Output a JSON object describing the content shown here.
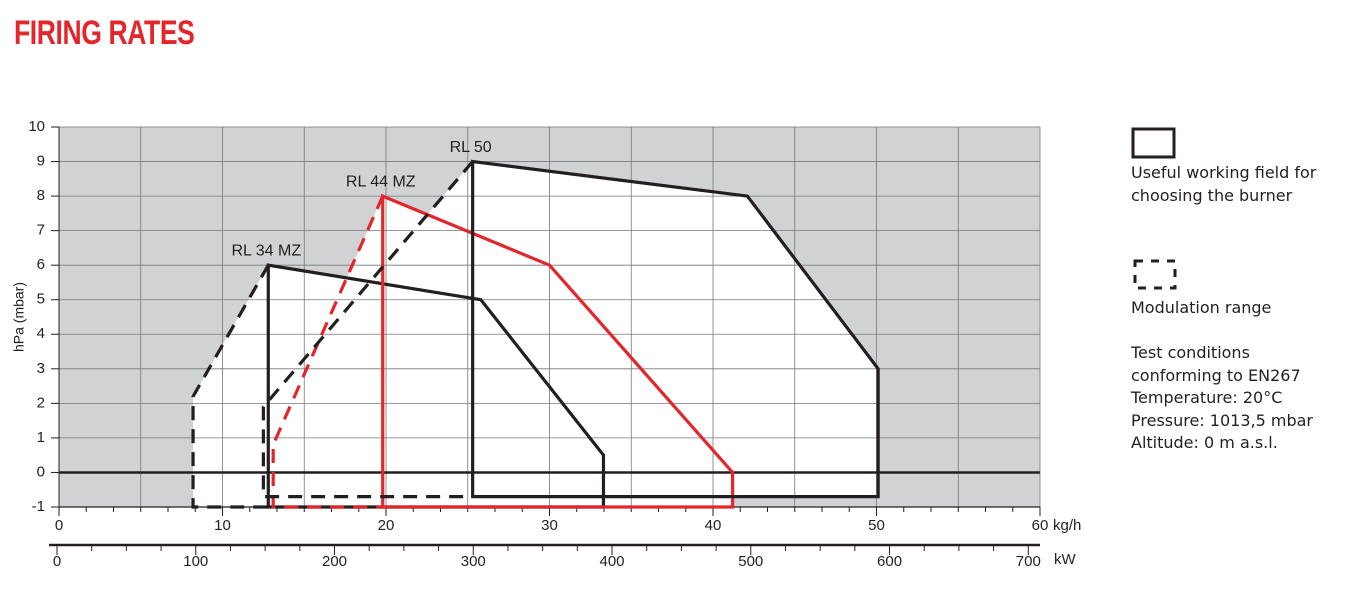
{
  "chart_data": {
    "type": "range",
    "title": "FIRING RATES",
    "ylabel": "hPa (mbar)",
    "xlabel": "kg/h",
    "x2label": "kW",
    "xlim": [
      0,
      60
    ],
    "xticks": [
      0,
      10,
      20,
      30,
      40,
      50,
      60
    ],
    "x2lim": [
      0,
      707
    ],
    "x2ticks": [
      0,
      100,
      200,
      300,
      400,
      500,
      600,
      700
    ],
    "ylim": [
      -1,
      10
    ],
    "yticks": [
      -1,
      0,
      1,
      2,
      3,
      4,
      5,
      6,
      7,
      8,
      9,
      10
    ],
    "grid": true,
    "series": [
      {
        "name": "RL 34 MZ",
        "color": "#231f20",
        "working": {
          "x": [
            12.8,
            12.8,
            25.8,
            33.3,
            33.3
          ],
          "y": [
            -1,
            6,
            5,
            0.5,
            -1
          ]
        },
        "modulation": {
          "x": [
            12.8,
            8.2,
            8.2,
            12.8
          ],
          "y": [
            6,
            2.2,
            -1,
            -1
          ]
        }
      },
      {
        "name": "RL 44 MZ",
        "color": "#e3262b",
        "working": {
          "x": [
            19.8,
            19.8,
            30,
            41.2,
            41.2
          ],
          "y": [
            -1,
            8,
            6,
            0,
            -1
          ]
        },
        "modulation": {
          "x": [
            19.8,
            13.1,
            13.1,
            19.8
          ],
          "y": [
            8,
            0.8,
            -1,
            -1
          ]
        }
      },
      {
        "name": "RL 50",
        "color": "#231f20",
        "working": {
          "x": [
            25.3,
            25.3,
            42.1,
            50.1,
            50.1
          ],
          "y": [
            -0.7,
            9,
            8,
            3,
            -0.7
          ]
        },
        "modulation": {
          "x": [
            25.3,
            12.5,
            12.5,
            25.3
          ],
          "y": [
            9,
            1.9,
            -0.7,
            -0.7
          ]
        }
      }
    ]
  },
  "legend": {
    "working_field": "Useful working field for choosing the burner",
    "modulation": "Modulation range",
    "conditions": [
      "Test conditions conforming to EN267",
      "Temperature: 20°C",
      "Pressure: 1013,5 mbar",
      "Altitude: 0 m a.s.l."
    ]
  }
}
